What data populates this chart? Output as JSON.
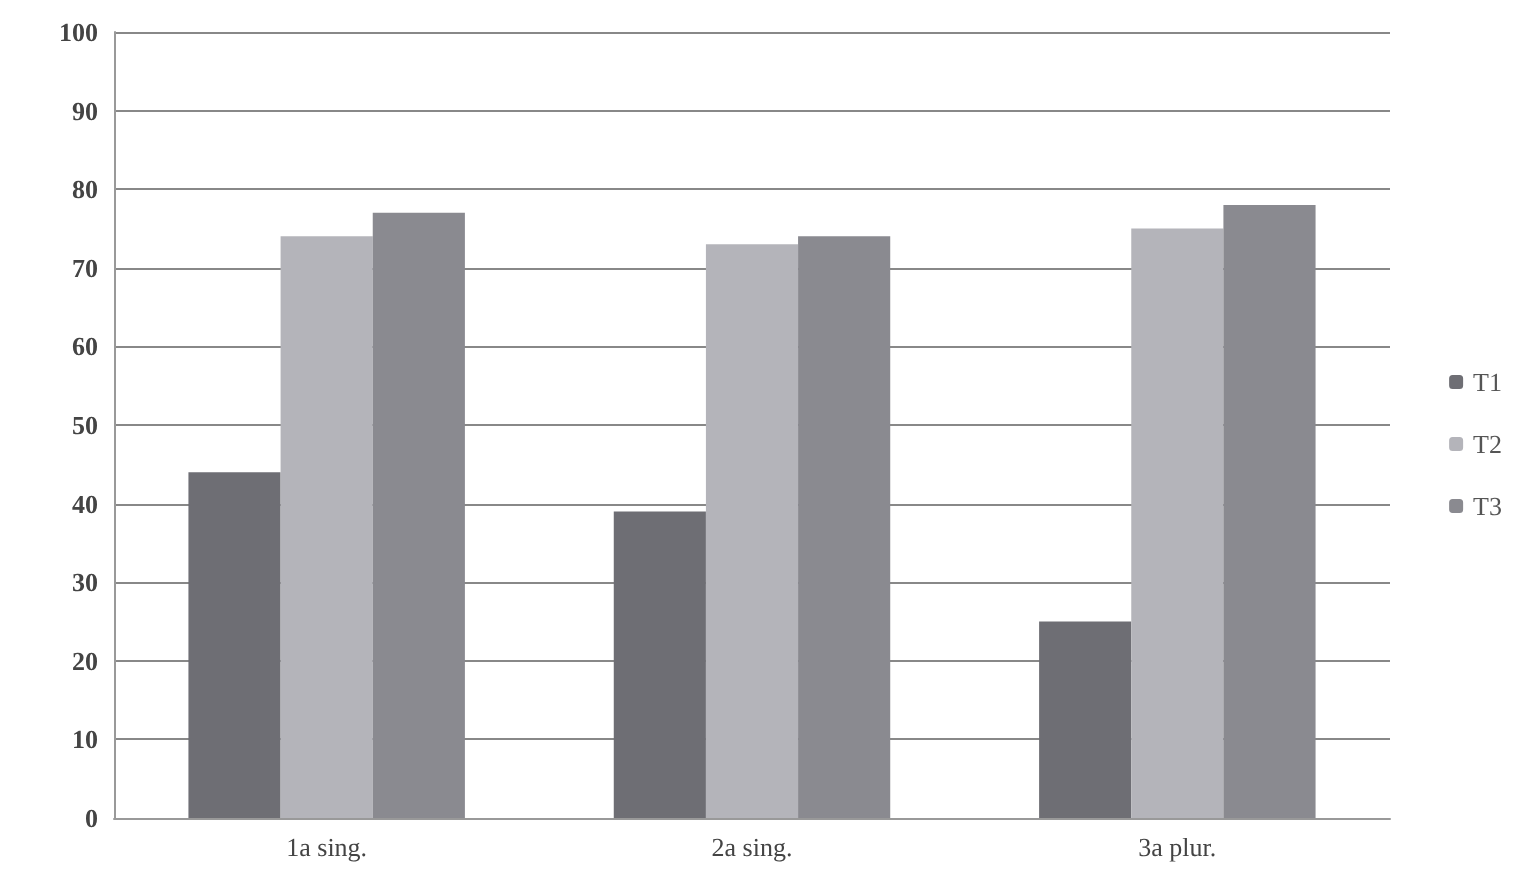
{
  "chart_data": {
    "type": "bar",
    "categories": [
      "1a sing.",
      "2a sing.",
      "3a plur."
    ],
    "series": [
      {
        "name": "T1",
        "color": "#6e6e74",
        "values": [
          44,
          39,
          25
        ]
      },
      {
        "name": "T2",
        "color": "#b4b4ba",
        "values": [
          74,
          73,
          75
        ]
      },
      {
        "name": "T3",
        "color": "#8a8a90",
        "values": [
          77,
          74,
          78
        ]
      }
    ],
    "ylim": [
      0,
      100
    ],
    "yticks": [
      0,
      10,
      20,
      30,
      40,
      50,
      60,
      70,
      80,
      90,
      100
    ],
    "grid": "y",
    "legend": "right"
  }
}
